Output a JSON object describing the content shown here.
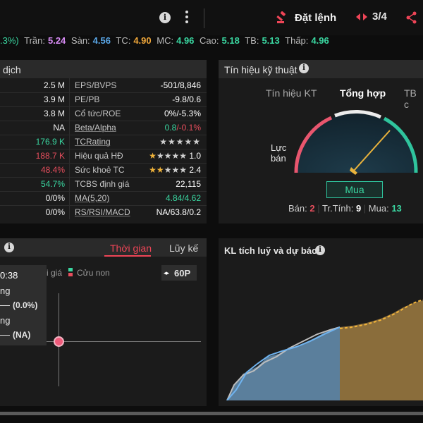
{
  "header": {
    "order_label": "Đặt lệnh",
    "pager": "3/4"
  },
  "ticker": {
    "pct": ".3%)",
    "tran_label": "Trần:",
    "tran": "5.24",
    "san_label": "Sàn:",
    "san": "4.56",
    "tc_label": "TC:",
    "tc": "4.90",
    "mc_label": "MC:",
    "mc": "4.96",
    "cao_label": "Cao:",
    "cao": "5.18",
    "tb_label": "TB:",
    "tb": "5.13",
    "thap_label": "Thấp:",
    "thap": "4.96"
  },
  "trading": {
    "title": "dịch",
    "rows": [
      {
        "v1": "2.5 M",
        "label": "EPS/BVPS",
        "v2": "-501/8,846"
      },
      {
        "v1": "3.9 M",
        "label": "PE/PB",
        "v2": "-9.8/0.6"
      },
      {
        "v1": "3.8 M",
        "label": "Cổ tức/ROE",
        "v2": "0%/-5.3%"
      },
      {
        "v1": "NA",
        "label": "Beta/Alpha",
        "v2a": "0.8",
        "v2b": "/-0.1%"
      },
      {
        "v1": "176.9 K",
        "label": "TCRating",
        "v2": "★★★★★"
      },
      {
        "v1": "188.7 K",
        "label": "Hiệu quả HĐ",
        "stars": "★",
        "stars_rest": "★★★★",
        "v2": "1.0"
      },
      {
        "v1": "48.4%",
        "label": "Sức khoẻ TC",
        "stars": "★★",
        "stars_rest": "★★★",
        "v2": "2.4"
      },
      {
        "v1": "54.7%",
        "label": "TCBS định giá",
        "v2": "22,115"
      },
      {
        "v1": "0/0%",
        "label": "MA(5,20)",
        "v2": "4.84/4.62"
      },
      {
        "v1": "0/0%",
        "label": "RS/RSI/MACD",
        "v2": "NA/63.8/0.2"
      }
    ]
  },
  "signal": {
    "title": "Tín hiệu kỹ thuật",
    "tabs": [
      "Tín hiệu KT",
      "Tổng hợp",
      "TB c"
    ],
    "active_tab": "Tổng hợp",
    "gauge_left_label": [
      "Lực",
      "bán"
    ],
    "verdict": "Mua",
    "counts": {
      "ban_label": "Bán:",
      "ban": "2",
      "tt_label": "Tr.Tính:",
      "tt": "9",
      "mua_label": "Mua:",
      "mua": "13"
    }
  },
  "intraday": {
    "tabs": [
      "Thời gian",
      "Lũy kế"
    ],
    "active_tab": "Thời gian",
    "legend": [
      "i giá",
      "Cửu non"
    ],
    "range": "60P",
    "tooltip": {
      "time": "0:38",
      "row1": "ng",
      "row1_val": "(0.0%)",
      "row2": "ng",
      "row2_val": "(NA)"
    }
  },
  "volume": {
    "title": "KL tích luỹ và dự báo"
  },
  "colors": {
    "green": "#3ad7a1",
    "red": "#e74e5d",
    "purple": "#d88cf5",
    "blue": "#5aa7e8",
    "orange": "#f0a73a"
  }
}
